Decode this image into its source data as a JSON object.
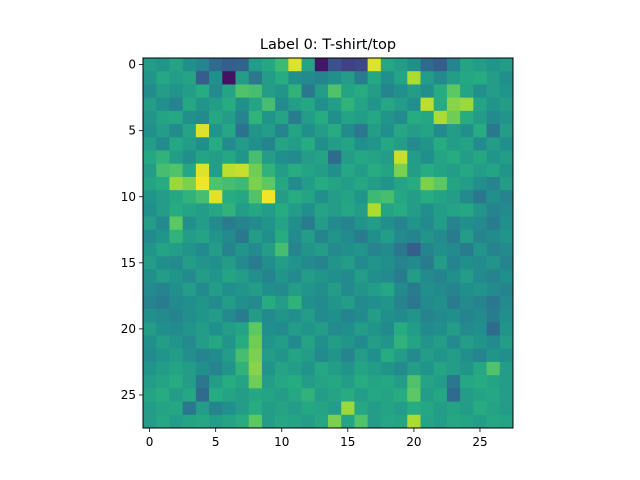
{
  "chart_data": {
    "type": "heatmap",
    "title": "Label 0: T-shirt/top",
    "xlabel": "",
    "ylabel": "",
    "colormap": "viridis",
    "grid": false,
    "x_range": [
      -0.5,
      27.5
    ],
    "y_range": [
      -0.5,
      27.5
    ],
    "y_inverted": true,
    "x_ticks": [
      0,
      5,
      10,
      15,
      20,
      25
    ],
    "y_ticks": [
      0,
      5,
      10,
      15,
      20,
      25
    ],
    "x_tick_labels": [
      "0",
      "5",
      "10",
      "15",
      "20",
      "25"
    ],
    "y_tick_labels": [
      "0",
      "5",
      "10",
      "15",
      "20",
      "25"
    ],
    "value_range": [
      0,
      1
    ],
    "values": [
      [
        0.55,
        0.52,
        0.58,
        0.5,
        0.45,
        0.35,
        0.3,
        0.32,
        0.55,
        0.6,
        0.68,
        0.95,
        0.58,
        0.06,
        0.25,
        0.2,
        0.22,
        0.95,
        0.6,
        0.55,
        0.5,
        0.35,
        0.3,
        0.45,
        0.58,
        0.55,
        0.52,
        0.55
      ],
      [
        0.52,
        0.6,
        0.55,
        0.58,
        0.3,
        0.5,
        0.05,
        0.55,
        0.4,
        0.55,
        0.62,
        0.5,
        0.48,
        0.45,
        0.5,
        0.55,
        0.42,
        0.6,
        0.5,
        0.58,
        0.88,
        0.55,
        0.48,
        0.55,
        0.6,
        0.62,
        0.55,
        0.5
      ],
      [
        0.48,
        0.55,
        0.52,
        0.55,
        0.62,
        0.48,
        0.58,
        0.72,
        0.7,
        0.55,
        0.52,
        0.65,
        0.4,
        0.55,
        0.72,
        0.58,
        0.62,
        0.55,
        0.45,
        0.5,
        0.55,
        0.5,
        0.62,
        0.75,
        0.58,
        0.5,
        0.55,
        0.52
      ],
      [
        0.55,
        0.5,
        0.45,
        0.6,
        0.52,
        0.55,
        0.62,
        0.5,
        0.58,
        0.7,
        0.48,
        0.55,
        0.6,
        0.5,
        0.55,
        0.65,
        0.58,
        0.52,
        0.6,
        0.55,
        0.5,
        0.9,
        0.62,
        0.82,
        0.85,
        0.58,
        0.52,
        0.55
      ],
      [
        0.52,
        0.58,
        0.6,
        0.5,
        0.48,
        0.6,
        0.55,
        0.45,
        0.65,
        0.52,
        0.58,
        0.42,
        0.55,
        0.62,
        0.5,
        0.58,
        0.55,
        0.6,
        0.52,
        0.48,
        0.62,
        0.6,
        0.88,
        0.78,
        0.62,
        0.55,
        0.48,
        0.52
      ],
      [
        0.5,
        0.55,
        0.48,
        0.58,
        0.95,
        0.52,
        0.6,
        0.38,
        0.52,
        0.55,
        0.45,
        0.58,
        0.5,
        0.55,
        0.62,
        0.48,
        0.4,
        0.55,
        0.5,
        0.6,
        0.55,
        0.58,
        0.48,
        0.55,
        0.5,
        0.62,
        0.4,
        0.55
      ],
      [
        0.55,
        0.48,
        0.6,
        0.55,
        0.5,
        0.62,
        0.48,
        0.55,
        0.5,
        0.45,
        0.58,
        0.55,
        0.62,
        0.5,
        0.55,
        0.58,
        0.5,
        0.52,
        0.6,
        0.55,
        0.48,
        0.52,
        0.62,
        0.55,
        0.58,
        0.48,
        0.55,
        0.5
      ],
      [
        0.6,
        0.65,
        0.55,
        0.5,
        0.58,
        0.55,
        0.6,
        0.52,
        0.7,
        0.55,
        0.5,
        0.48,
        0.55,
        0.58,
        0.35,
        0.55,
        0.6,
        0.58,
        0.55,
        0.92,
        0.55,
        0.5,
        0.58,
        0.62,
        0.55,
        0.6,
        0.52,
        0.55
      ],
      [
        0.55,
        0.7,
        0.72,
        0.6,
        0.95,
        0.55,
        0.9,
        0.92,
        0.78,
        0.65,
        0.55,
        0.62,
        0.58,
        0.55,
        0.5,
        0.6,
        0.55,
        0.62,
        0.58,
        0.8,
        0.55,
        0.62,
        0.58,
        0.55,
        0.6,
        0.55,
        0.58,
        0.52
      ],
      [
        0.58,
        0.62,
        0.85,
        0.8,
        0.98,
        0.72,
        0.7,
        0.68,
        0.8,
        0.75,
        0.6,
        0.48,
        0.55,
        0.62,
        0.58,
        0.55,
        0.6,
        0.55,
        0.52,
        0.58,
        0.62,
        0.8,
        0.75,
        0.58,
        0.55,
        0.5,
        0.45,
        0.55
      ],
      [
        0.52,
        0.55,
        0.6,
        0.65,
        0.7,
        0.95,
        0.62,
        0.6,
        0.72,
        0.98,
        0.55,
        0.62,
        0.58,
        0.5,
        0.55,
        0.58,
        0.52,
        0.68,
        0.7,
        0.6,
        0.55,
        0.62,
        0.58,
        0.55,
        0.48,
        0.4,
        0.5,
        0.45
      ],
      [
        0.5,
        0.55,
        0.62,
        0.58,
        0.55,
        0.6,
        0.65,
        0.55,
        0.6,
        0.55,
        0.62,
        0.55,
        0.5,
        0.58,
        0.55,
        0.6,
        0.55,
        0.88,
        0.58,
        0.62,
        0.55,
        0.5,
        0.55,
        0.58,
        0.6,
        0.52,
        0.45,
        0.48
      ],
      [
        0.55,
        0.48,
        0.75,
        0.5,
        0.55,
        0.48,
        0.42,
        0.45,
        0.48,
        0.52,
        0.58,
        0.5,
        0.42,
        0.55,
        0.48,
        0.45,
        0.52,
        0.55,
        0.5,
        0.45,
        0.52,
        0.48,
        0.55,
        0.45,
        0.5,
        0.48,
        0.42,
        0.5
      ],
      [
        0.48,
        0.52,
        0.65,
        0.55,
        0.58,
        0.52,
        0.48,
        0.4,
        0.55,
        0.5,
        0.62,
        0.48,
        0.55,
        0.45,
        0.52,
        0.48,
        0.42,
        0.5,
        0.55,
        0.48,
        0.45,
        0.52,
        0.48,
        0.42,
        0.55,
        0.45,
        0.48,
        0.52
      ],
      [
        0.52,
        0.58,
        0.55,
        0.52,
        0.48,
        0.55,
        0.45,
        0.52,
        0.48,
        0.55,
        0.7,
        0.45,
        0.52,
        0.55,
        0.48,
        0.5,
        0.52,
        0.45,
        0.48,
        0.4,
        0.3,
        0.45,
        0.5,
        0.48,
        0.42,
        0.52,
        0.45,
        0.48
      ],
      [
        0.55,
        0.5,
        0.48,
        0.55,
        0.52,
        0.5,
        0.55,
        0.48,
        0.42,
        0.5,
        0.55,
        0.52,
        0.48,
        0.45,
        0.52,
        0.55,
        0.48,
        0.52,
        0.5,
        0.45,
        0.48,
        0.42,
        0.55,
        0.45,
        0.5,
        0.48,
        0.52,
        0.45
      ],
      [
        0.5,
        0.55,
        0.52,
        0.48,
        0.55,
        0.52,
        0.58,
        0.55,
        0.5,
        0.45,
        0.52,
        0.48,
        0.55,
        0.52,
        0.5,
        0.48,
        0.55,
        0.5,
        0.48,
        0.42,
        0.55,
        0.48,
        0.45,
        0.5,
        0.55,
        0.48,
        0.45,
        0.5
      ],
      [
        0.48,
        0.45,
        0.5,
        0.55,
        0.48,
        0.55,
        0.5,
        0.52,
        0.55,
        0.5,
        0.48,
        0.55,
        0.52,
        0.5,
        0.55,
        0.48,
        0.52,
        0.55,
        0.6,
        0.48,
        0.42,
        0.5,
        0.48,
        0.45,
        0.5,
        0.52,
        0.48,
        0.45
      ],
      [
        0.45,
        0.42,
        0.48,
        0.5,
        0.52,
        0.48,
        0.55,
        0.5,
        0.48,
        0.62,
        0.55,
        0.65,
        0.5,
        0.48,
        0.52,
        0.55,
        0.48,
        0.5,
        0.52,
        0.45,
        0.4,
        0.48,
        0.5,
        0.42,
        0.48,
        0.45,
        0.4,
        0.48
      ],
      [
        0.5,
        0.48,
        0.45,
        0.5,
        0.52,
        0.55,
        0.48,
        0.42,
        0.55,
        0.48,
        0.52,
        0.5,
        0.55,
        0.48,
        0.5,
        0.45,
        0.48,
        0.55,
        0.5,
        0.48,
        0.52,
        0.45,
        0.48,
        0.5,
        0.45,
        0.48,
        0.42,
        0.5
      ],
      [
        0.55,
        0.5,
        0.48,
        0.52,
        0.55,
        0.5,
        0.55,
        0.58,
        0.75,
        0.5,
        0.48,
        0.55,
        0.52,
        0.55,
        0.48,
        0.5,
        0.55,
        0.52,
        0.48,
        0.62,
        0.55,
        0.48,
        0.5,
        0.55,
        0.48,
        0.5,
        0.35,
        0.52
      ],
      [
        0.5,
        0.55,
        0.52,
        0.48,
        0.55,
        0.6,
        0.52,
        0.62,
        0.78,
        0.52,
        0.55,
        0.48,
        0.58,
        0.5,
        0.55,
        0.52,
        0.48,
        0.55,
        0.52,
        0.65,
        0.58,
        0.52,
        0.55,
        0.48,
        0.55,
        0.52,
        0.48,
        0.55
      ],
      [
        0.48,
        0.52,
        0.55,
        0.5,
        0.45,
        0.48,
        0.55,
        0.7,
        0.8,
        0.55,
        0.52,
        0.58,
        0.55,
        0.48,
        0.52,
        0.45,
        0.55,
        0.5,
        0.62,
        0.55,
        0.48,
        0.55,
        0.52,
        0.55,
        0.5,
        0.45,
        0.52,
        0.5
      ],
      [
        0.52,
        0.55,
        0.58,
        0.55,
        0.5,
        0.45,
        0.52,
        0.65,
        0.82,
        0.52,
        0.58,
        0.55,
        0.52,
        0.6,
        0.55,
        0.52,
        0.58,
        0.55,
        0.52,
        0.48,
        0.55,
        0.52,
        0.58,
        0.55,
        0.52,
        0.6,
        0.72,
        0.55
      ],
      [
        0.55,
        0.58,
        0.62,
        0.55,
        0.4,
        0.55,
        0.62,
        0.58,
        0.78,
        0.55,
        0.6,
        0.62,
        0.55,
        0.58,
        0.6,
        0.55,
        0.62,
        0.58,
        0.6,
        0.55,
        0.72,
        0.58,
        0.55,
        0.4,
        0.6,
        0.62,
        0.58,
        0.55
      ],
      [
        0.58,
        0.62,
        0.55,
        0.6,
        0.35,
        0.62,
        0.58,
        0.55,
        0.6,
        0.58,
        0.55,
        0.6,
        0.65,
        0.55,
        0.58,
        0.62,
        0.55,
        0.6,
        0.58,
        0.62,
        0.75,
        0.55,
        0.6,
        0.35,
        0.55,
        0.58,
        0.6,
        0.55
      ],
      [
        0.55,
        0.58,
        0.6,
        0.4,
        0.55,
        0.45,
        0.5,
        0.55,
        0.62,
        0.55,
        0.58,
        0.55,
        0.6,
        0.58,
        0.55,
        0.85,
        0.6,
        0.55,
        0.58,
        0.55,
        0.62,
        0.6,
        0.55,
        0.58,
        0.55,
        0.62,
        0.58,
        0.55
      ],
      [
        0.55,
        0.6,
        0.55,
        0.58,
        0.6,
        0.55,
        0.58,
        0.62,
        0.75,
        0.55,
        0.6,
        0.58,
        0.55,
        0.6,
        0.8,
        0.58,
        0.72,
        0.55,
        0.6,
        0.58,
        0.88,
        0.58,
        0.55,
        0.6,
        0.58,
        0.55,
        0.6,
        0.58
      ]
    ]
  }
}
